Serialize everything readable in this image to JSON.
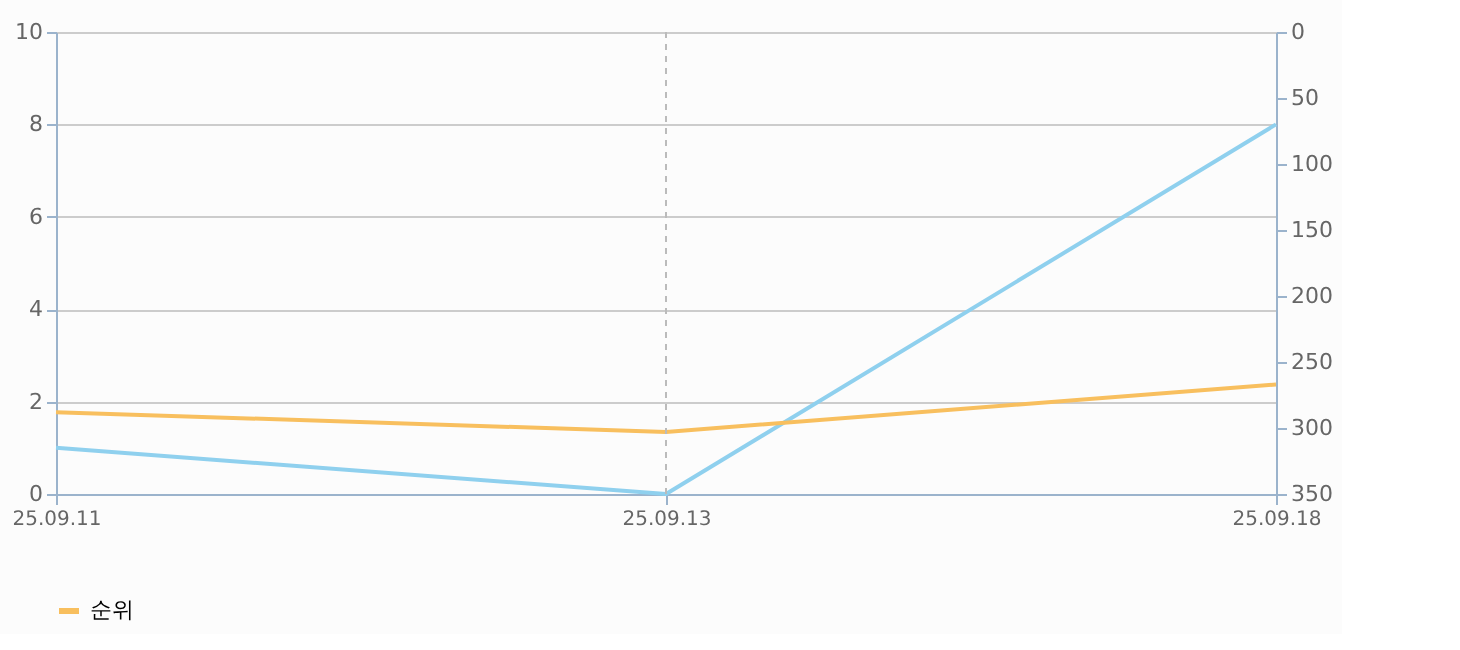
{
  "chart_data": {
    "type": "line",
    "categories": [
      "25.09.11",
      "25.09.13",
      "25.09.18"
    ],
    "series": [
      {
        "color": "#8fd0ee",
        "values": [
          1,
          0,
          8
        ]
      },
      {
        "name": "순위",
        "color": "#f8bf5e",
        "values": [
          288,
          303,
          267
        ],
        "axis": "y2"
      }
    ],
    "ylim": [
      0,
      10
    ],
    "yticks": [
      0,
      2,
      4,
      6,
      8,
      10
    ],
    "y2lim": [
      350,
      0
    ],
    "y2ticks": [
      0,
      50,
      100,
      150,
      200,
      250,
      300,
      350
    ],
    "grid": "y",
    "ref_lines": [
      {
        "axis": "x",
        "value": "25.09.13",
        "color": "#bbbbbb",
        "line_style": "dashed"
      }
    ],
    "legend": "bottom",
    "marker": "none",
    "line_style": "solid"
  }
}
